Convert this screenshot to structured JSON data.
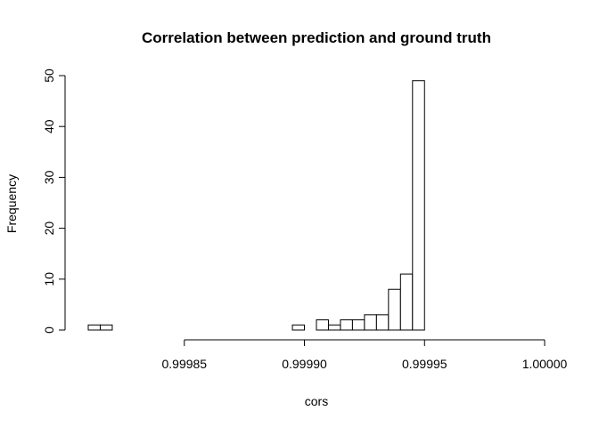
{
  "chart_data": {
    "type": "bar",
    "title": "Correlation between prediction and ground truth",
    "xlabel": "cors",
    "ylabel": "Frequency",
    "bin_width": 5e-06,
    "bins": [
      {
        "start": 0.99981,
        "end": 0.999815,
        "count": 1
      },
      {
        "start": 0.999815,
        "end": 0.99982,
        "count": 1
      },
      {
        "start": 0.99982,
        "end": 0.999825,
        "count": 0
      },
      {
        "start": 0.999825,
        "end": 0.99983,
        "count": 0
      },
      {
        "start": 0.99983,
        "end": 0.999835,
        "count": 0
      },
      {
        "start": 0.999835,
        "end": 0.99984,
        "count": 0
      },
      {
        "start": 0.99984,
        "end": 0.999845,
        "count": 0
      },
      {
        "start": 0.999845,
        "end": 0.99985,
        "count": 0
      },
      {
        "start": 0.99985,
        "end": 0.999855,
        "count": 0
      },
      {
        "start": 0.999855,
        "end": 0.99986,
        "count": 0
      },
      {
        "start": 0.99986,
        "end": 0.999865,
        "count": 0
      },
      {
        "start": 0.999865,
        "end": 0.99987,
        "count": 0
      },
      {
        "start": 0.99987,
        "end": 0.999875,
        "count": 0
      },
      {
        "start": 0.999875,
        "end": 0.99988,
        "count": 0
      },
      {
        "start": 0.99988,
        "end": 0.999885,
        "count": 0
      },
      {
        "start": 0.999885,
        "end": 0.99989,
        "count": 0
      },
      {
        "start": 0.99989,
        "end": 0.999895,
        "count": 0
      },
      {
        "start": 0.999895,
        "end": 0.9999,
        "count": 1
      },
      {
        "start": 0.9999,
        "end": 0.999905,
        "count": 0
      },
      {
        "start": 0.999905,
        "end": 0.99991,
        "count": 2
      },
      {
        "start": 0.99991,
        "end": 0.999915,
        "count": 1
      },
      {
        "start": 0.999915,
        "end": 0.99992,
        "count": 2
      },
      {
        "start": 0.99992,
        "end": 0.999925,
        "count": 2
      },
      {
        "start": 0.999925,
        "end": 0.99993,
        "count": 3
      },
      {
        "start": 0.99993,
        "end": 0.999935,
        "count": 3
      },
      {
        "start": 0.999935,
        "end": 0.99994,
        "count": 8
      },
      {
        "start": 0.99994,
        "end": 0.999945,
        "count": 11
      },
      {
        "start": 0.999945,
        "end": 0.99995,
        "count": 49
      }
    ],
    "xlim": [
      0.99981,
      1.0
    ],
    "ylim": [
      0,
      50
    ],
    "x_ticks": [
      {
        "value": 0.99985,
        "label": "0.99985"
      },
      {
        "value": 0.9999,
        "label": "0.99990"
      },
      {
        "value": 0.99995,
        "label": "0.99995"
      },
      {
        "value": 1.0,
        "label": "1.00000"
      }
    ],
    "x_axis_range": [
      0.99985,
      1.0
    ],
    "y_ticks": [
      {
        "value": 0,
        "label": "0"
      },
      {
        "value": 10,
        "label": "10"
      },
      {
        "value": 20,
        "label": "20"
      },
      {
        "value": 30,
        "label": "30"
      },
      {
        "value": 40,
        "label": "40"
      },
      {
        "value": 50,
        "label": "50"
      }
    ],
    "grid": false,
    "legend": "none",
    "colors": {
      "bar_fill": "#ffffff",
      "bar_stroke": "#000000"
    }
  }
}
